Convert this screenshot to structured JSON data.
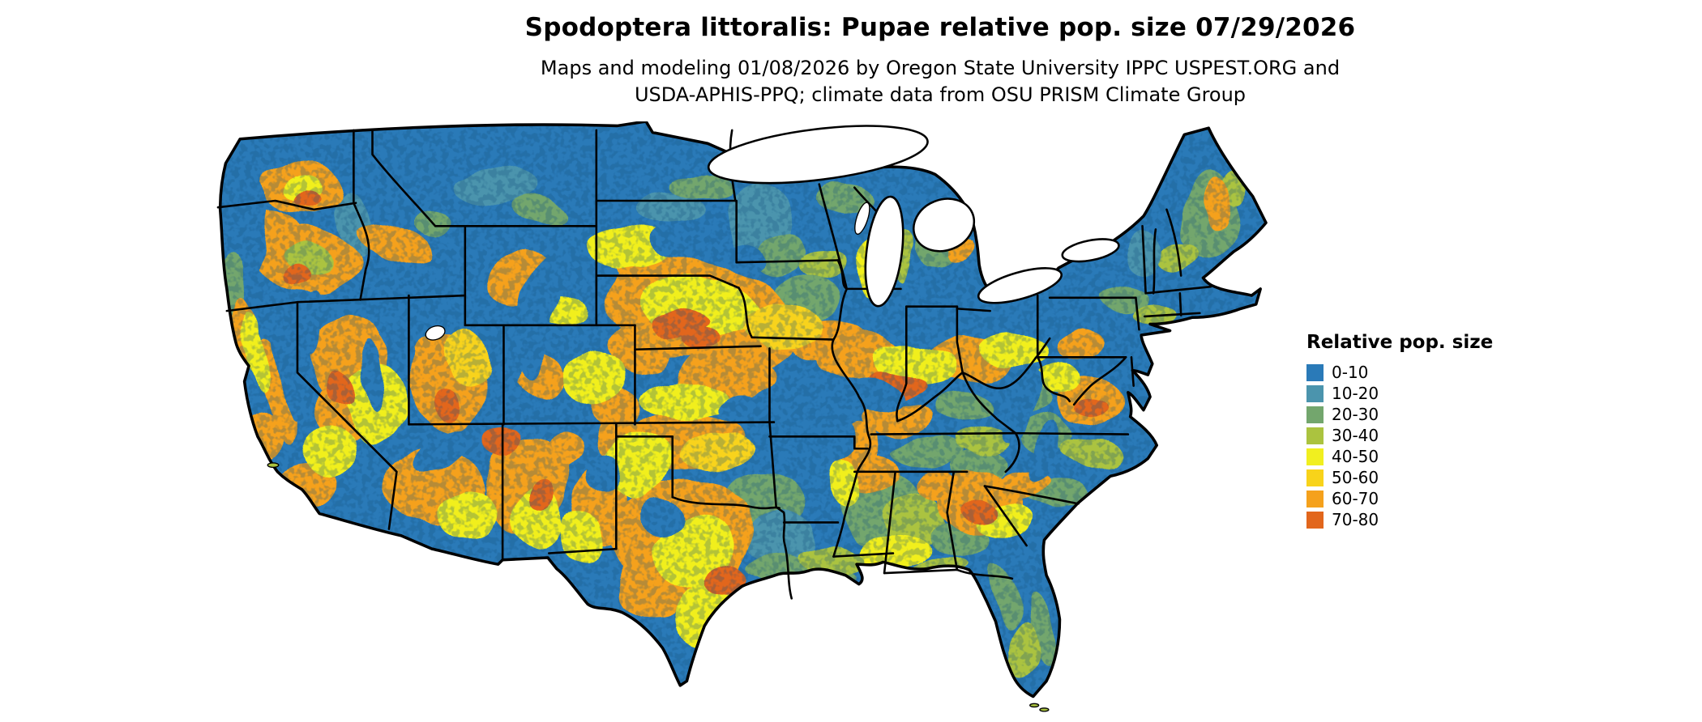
{
  "header": {
    "title": "Spodoptera littoralis: Pupae relative pop. size 07/29/2026",
    "subtitle_line1": "Maps and modeling 01/08/2026 by Oregon State University IPPC USPEST.ORG and",
    "subtitle_line2": "USDA-APHIS-PPQ; climate data from OSU PRISM Climate Group"
  },
  "legend": {
    "title": "Relative pop. size",
    "items": [
      {
        "label": "0-10",
        "color": "#2a7ab8"
      },
      {
        "label": "10-20",
        "color": "#4b94ad"
      },
      {
        "label": "20-30",
        "color": "#73a66d"
      },
      {
        "label": "30-40",
        "color": "#abc33f"
      },
      {
        "label": "40-50",
        "color": "#f1ef1f"
      },
      {
        "label": "50-60",
        "color": "#f8d31a"
      },
      {
        "label": "60-70",
        "color": "#f5a11c"
      },
      {
        "label": "70-80",
        "color": "#e2661c"
      }
    ]
  },
  "map": {
    "region": "Continental United States",
    "base_class_label": "0-10",
    "border_color": "#000000",
    "water_color": "#ffffff"
  }
}
